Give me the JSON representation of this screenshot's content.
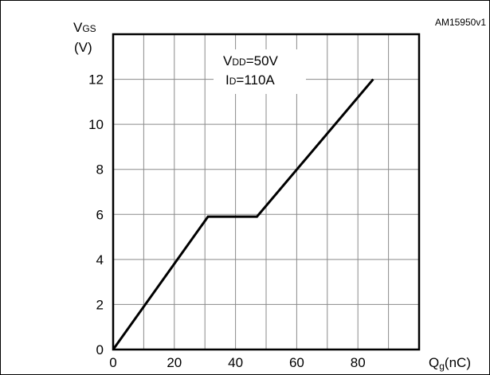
{
  "figure_id": "AM15950v1",
  "chart_data": {
    "type": "line",
    "ylabel_main": "V",
    "ylabel_sub": "GS",
    "ylabel_unit": "(V)",
    "xlabel_main": "Q",
    "xlabel_sub": "g",
    "xlabel_unit": "(nC)",
    "xlim": [
      0,
      100
    ],
    "ylim": [
      0,
      14
    ],
    "x_ticks": [
      0,
      20,
      40,
      60,
      80
    ],
    "y_ticks": [
      0,
      2,
      4,
      6,
      8,
      10,
      12
    ],
    "grid": true,
    "series": [
      {
        "x": [
          0,
          31,
          47,
          85
        ],
        "y": [
          0,
          5.9,
          5.9,
          12
        ]
      }
    ],
    "annotation": {
      "line1_main": "V",
      "line1_sub": "DD",
      "line1_rest": "=50V",
      "line2_main": "I",
      "line2_sub": "D",
      "line2_rest": "=110A"
    }
  }
}
